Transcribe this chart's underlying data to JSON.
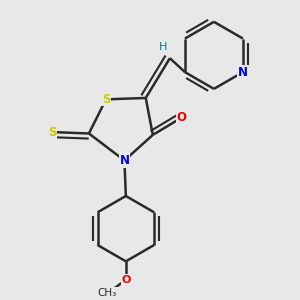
{
  "bg_color": "#e8e8e8",
  "bond_color": "#2a2a2a",
  "bond_width": 1.8,
  "S_color": "#cccc00",
  "N_color": "#0000ee",
  "O_color": "#ee0000",
  "H_color": "#008080",
  "figsize": [
    3.0,
    3.0
  ],
  "dpi": 100,
  "xlim": [
    0.0,
    1.0
  ],
  "ylim": [
    0.0,
    1.0
  ]
}
